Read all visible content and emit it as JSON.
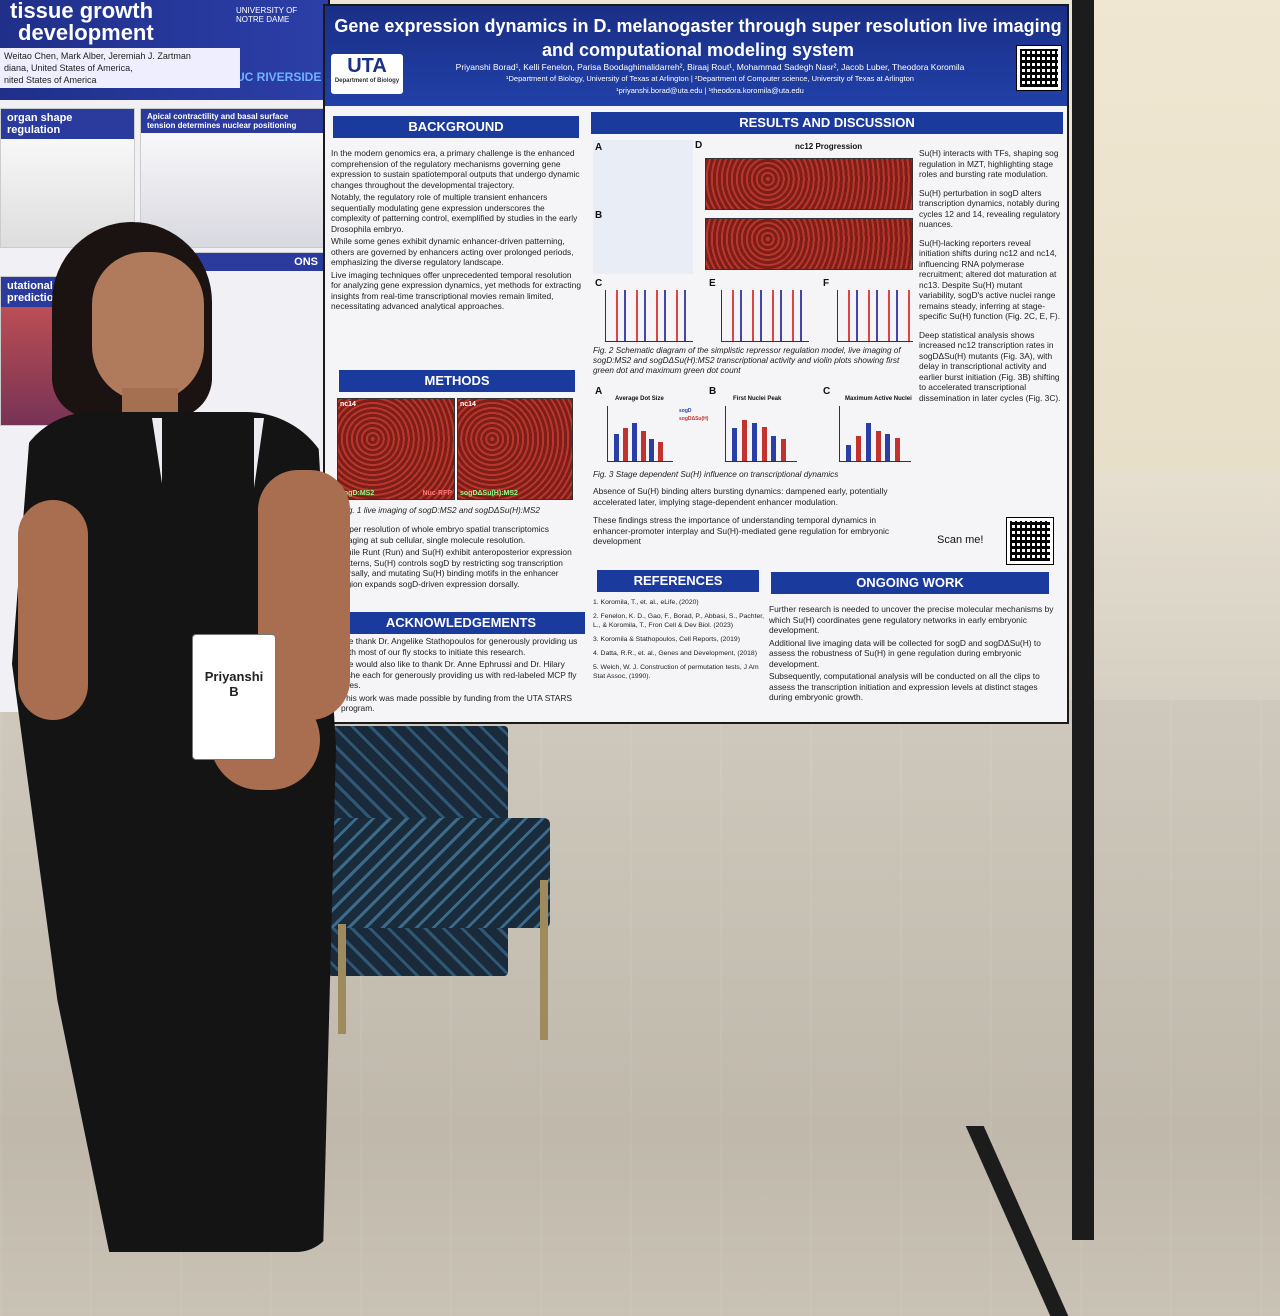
{
  "scene": {
    "description_tag": "poster-session-photo"
  },
  "left_poster": {
    "title_lines": [
      "tissue growth",
      "development"
    ],
    "affiliation_logo_1": "UNIVERSITY OF NOTRE DAME",
    "affiliation_logo_2": "UC RIVERSIDE",
    "authors": "Weitao Chen, Mark Alber, Jeremiah J. Zartman",
    "location_1": "diana, United States of America,",
    "location_2": "nited States of America",
    "panel_1_title": "organ shape regulation",
    "panel_2_title": "Apical contractility and basal surface tension determines nuclear positioning",
    "panel_3_title": "utational predictions",
    "panel_4_title": "ONS"
  },
  "poster": {
    "title_line_1": "Gene expression dynamics in D. melanogaster through super resolution live imaging",
    "title_line_2": "and computational modeling system",
    "logo_main": "UTA",
    "logo_sub": "Department of Biology",
    "authors": "Priyanshi Borad¹, Kelli Fenelon, Parisa Boodaghimalidarreh², Biraaj Rout¹, Mohammad Sadegh Nasr², Jacob Luber, Theodora Koromila",
    "affiliations": "¹Department of Biology, University of Texas at Arlington | ²Department of Computer science, University of Texas at Arlington",
    "emails": "¹priyanshi.borad@uta.edu | ¹theodora.koromila@uta.edu",
    "background": {
      "heading": "BACKGROUND",
      "bullets": [
        "In the modern genomics era, a primary challenge is the enhanced comprehension of the regulatory mechanisms governing gene expression to sustain spatiotemporal outputs that undergo dynamic changes throughout the developmental trajectory.",
        "Notably, the regulatory role of multiple transient enhancers sequentially modulating gene expression underscores the complexity of patterning control, exemplified by studies in the early Drosophila embryo.",
        "While some genes exhibit dynamic enhancer-driven patterning, others are governed by enhancers acting over prolonged periods, emphasizing the diverse regulatory landscape.",
        "Live imaging techniques offer unprecedented temporal resolution for analyzing gene expression dynamics, yet methods for extracting insights from real-time transcriptional movies remain limited, necessitating advanced analytical approaches."
      ]
    },
    "methods": {
      "heading": "METHODS",
      "fig_label_left": "nc14",
      "fig_label_right": "nc14",
      "fig_tag_left": "sogD:MS2",
      "fig_tag_mid": "Nuc-RFP",
      "fig_tag_right": "sogDΔSu(H):MS2",
      "caption": "Fig. 1 live imaging of sogD:MS2 and sogDΔSu(H):MS2",
      "bullets": [
        "Super resolution of whole embryo spatial transcriptomics imaging at sub cellular, single molecule resolution.",
        "While Runt (Run) and Su(H) exhibit anteroposterior expression patterns, Su(H) controls sogD by restricting sog transcription dorsally, and mutating Su(H) binding motifs in the enhancer region expands sogD-driven expression dorsally."
      ]
    },
    "acknowledgements": {
      "heading": "ACKNOWLEDGEMENTS",
      "bullets": [
        "We thank Dr. Angelike Stathopoulos for generously providing us with most of our fly stocks to initiate this research.",
        "We would also like to thank Dr. Anne Ephrussi and Dr. Hilary Ashe each for generously providing us with red-labeled MCP fly lines.",
        "This work was made possible by funding from the UTA STARS program."
      ]
    },
    "results": {
      "heading": "RESULTS AND DISCUSSION",
      "panel_labels": [
        "A",
        "B",
        "C",
        "D",
        "E",
        "F"
      ],
      "nc12_label": "nc12 Progression",
      "fig2_caption": "Fig. 2 Schematic diagram of the simplistic repressor regulation model, live imaging of sogD:MS2 and sogDΔSu(H):MS2 transcriptional activity and violin plots showing first green dot and maximum green dot count",
      "fig3_labels": [
        "A",
        "B",
        "C"
      ],
      "fig3_titles": [
        "Average Dot Size",
        "First Nuclei Peak",
        "Maximum Active Nuclei"
      ],
      "fig3_legend": [
        "sogD",
        "sogDΔSu(H)"
      ],
      "fig3_caption": "Fig. 3 Stage dependent Su(H) influence on transcriptional dynamics",
      "right_bullets": [
        "Su(H) interacts with TFs, shaping sog regulation in MZT, highlighting stage roles and bursting rate modulation.",
        "Su(H) perturbation in sogD alters transcription dynamics, notably during cycles 12 and 14, revealing regulatory nuances.",
        "Su(H)-lacking reporters reveal initiation shifts during nc12 and nc14, influencing RNA polymerase recruitment; altered dot maturation at nc13. Despite Su(H) mutant variability, sogD's active nuclei range remains steady, inferring at stage-specific Su(H) function (Fig. 2C, E, F).",
        "Deep statistical analysis shows increased nc12 transcription rates in sogDΔSu(H) mutants (Fig. 3A), with delay in transcriptional activity and earlier burst initiation (Fig. 3B) shifting to accelerated transcriptional dissemination in later cycles (Fig. 3C)."
      ],
      "bottom_bullets": [
        "Absence of Su(H) binding alters bursting dynamics: dampened early, potentially accelerated later, implying stage-dependent enhancer modulation.",
        "These findings stress the importance of understanding temporal dynamics in enhancer-promoter interplay and Su(H)-mediated gene regulation for embryonic development"
      ],
      "scan_label": "Scan me!"
    },
    "references": {
      "heading": "REFERENCES",
      "items": [
        "1. Koromila, T., et. al., eLife, (2020)",
        "2. Fenelon, K. D., Gao, F., Borad, P., Abbasi, S., Pachter, L., & Koromila, T., Fron Cell & Dev Biol. (2023)",
        "3. Koromila & Stathopoulos, Cell Reports, (2019)",
        "4. Datta, R.R., et. al., Genes and Development, (2018)",
        "5. Welch, W. J. Construction of permutation tests, J Am Stat Assoc, (1990)."
      ]
    },
    "ongoing": {
      "heading": "ONGOING WORK",
      "bullets": [
        "Further research is needed to uncover the precise molecular mechanisms by which Su(H) coordinates gene regulatory networks in early embryonic development.",
        "Additional live imaging data will be collected for sogD and sogDΔSu(H) to assess the robustness of Su(H) in gene regulation during embryonic development.",
        "Subsequently, computational analysis will be conducted on all the clips to assess the transcription initiation and expression levels at distinct stages during embryonic growth."
      ]
    }
  },
  "badge": {
    "name": "Priyanshi",
    "initial": "B"
  },
  "colors": {
    "poster_blue": "#1b3a9e",
    "dress": "#141414",
    "floor": "#c9c2b5"
  }
}
